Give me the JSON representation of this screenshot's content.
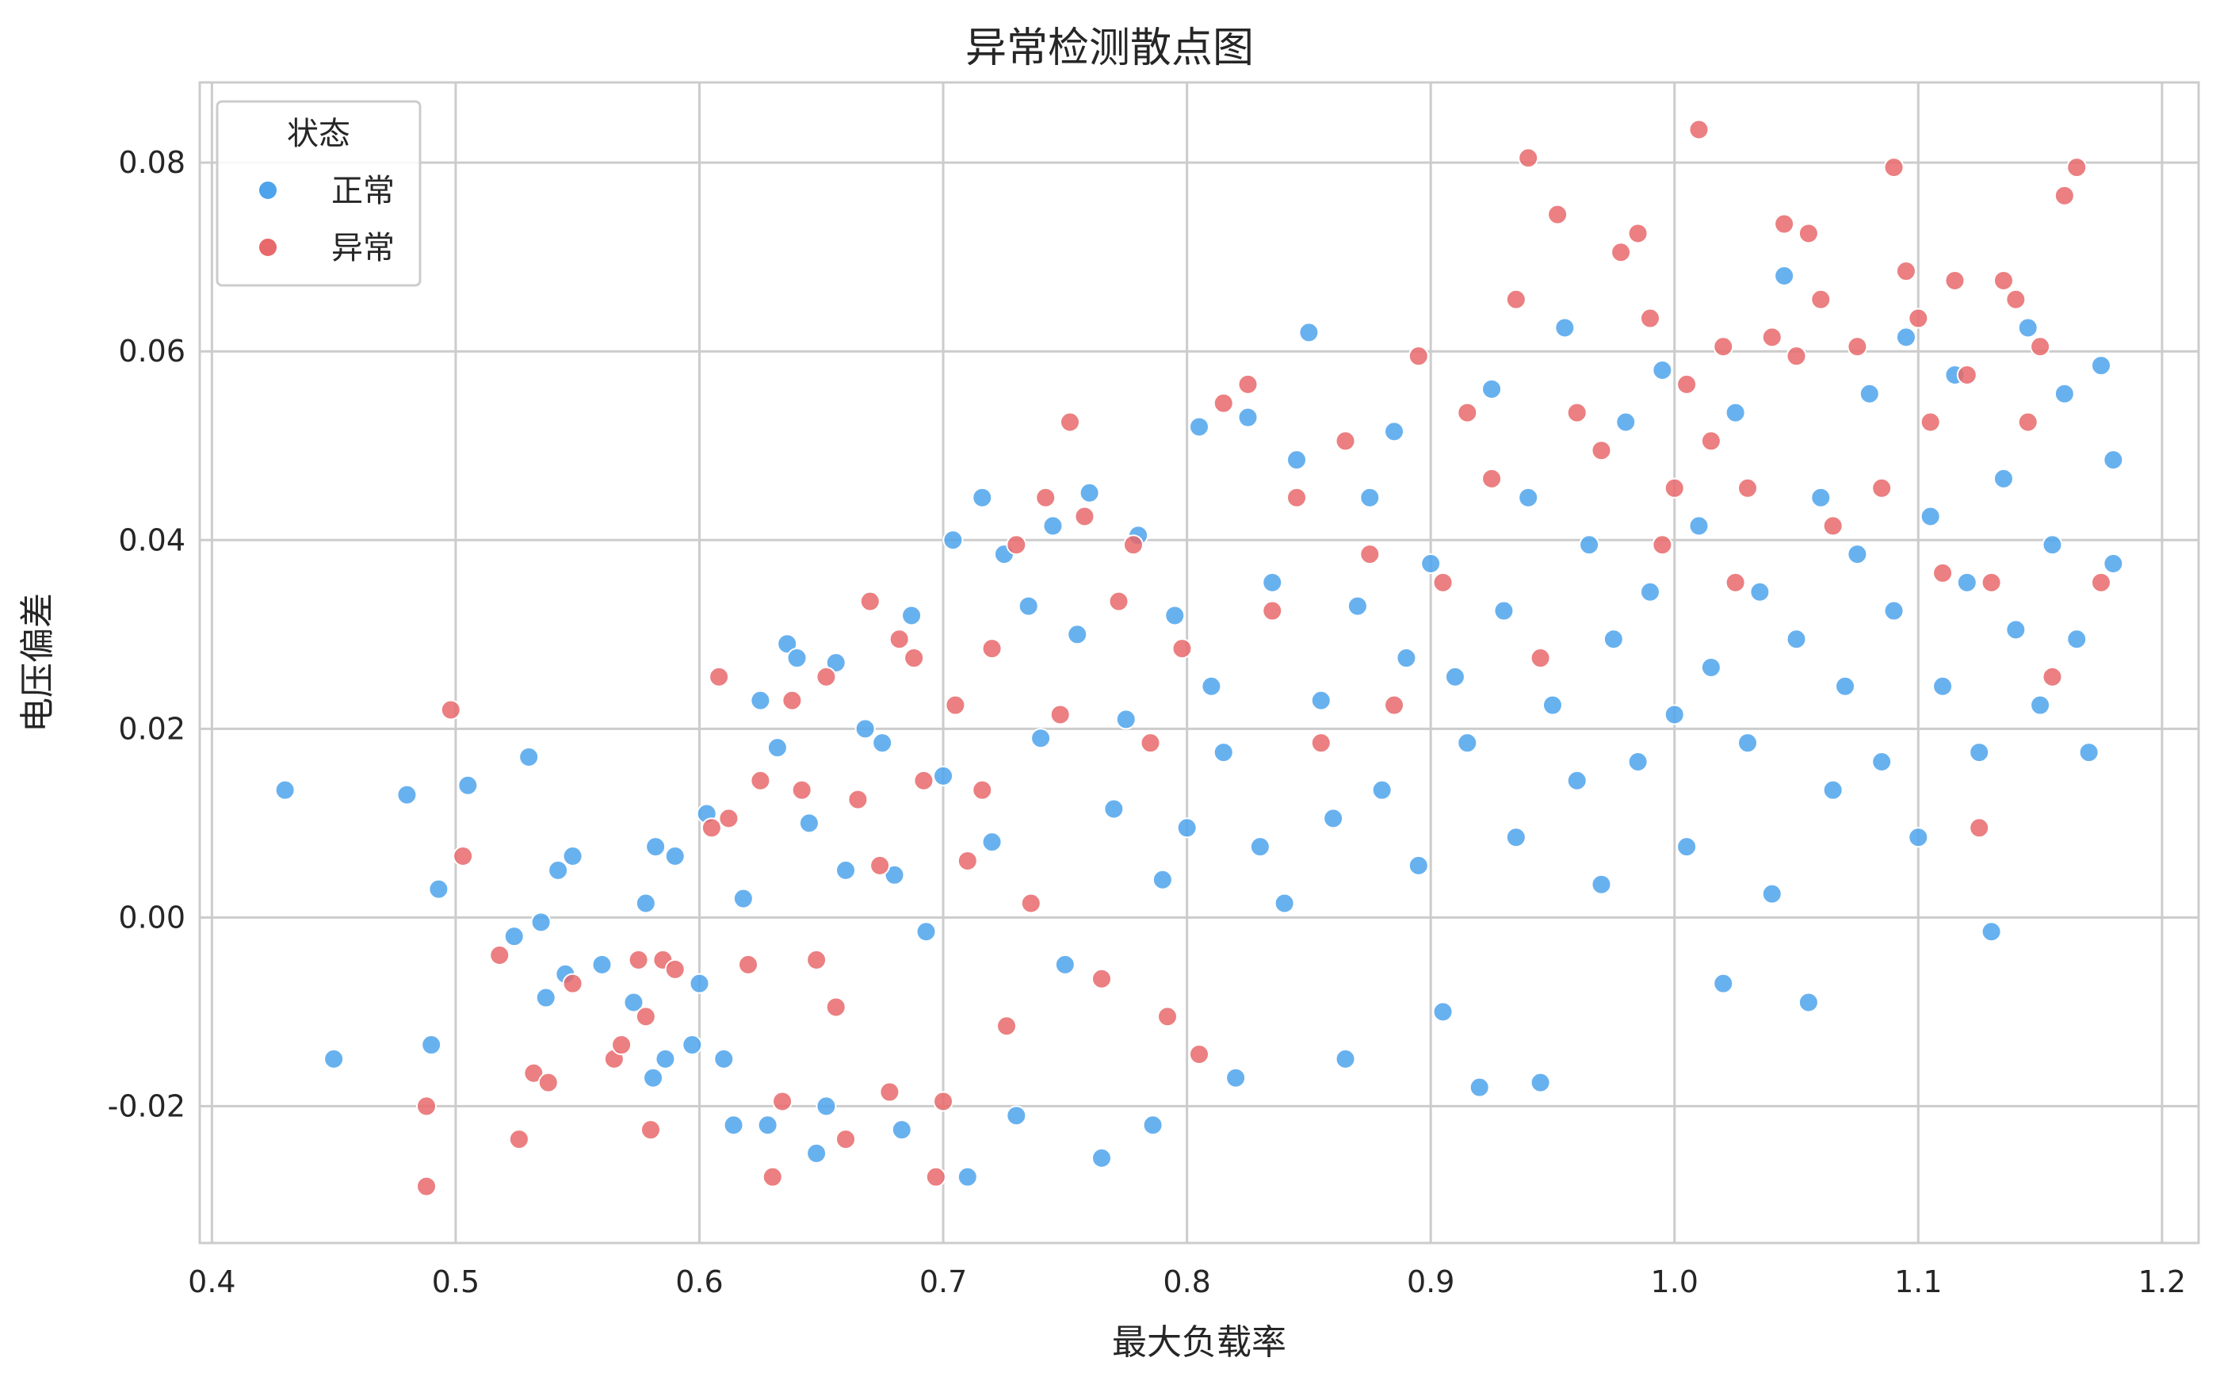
{
  "chart_data": {
    "type": "scatter",
    "title": "异常检测散点图",
    "xlabel": "最大负载率",
    "ylabel": "电压偏差",
    "xlim": [
      0.395,
      1.215
    ],
    "ylim": [
      -0.0345,
      0.0885
    ],
    "xticks": [
      0.4,
      0.5,
      0.6,
      0.7,
      0.8,
      0.9,
      1.0,
      1.1,
      1.2
    ],
    "xtick_labels": [
      "0.4",
      "0.5",
      "0.6",
      "0.7",
      "0.8",
      "0.9",
      "1.0",
      "1.1",
      "1.2"
    ],
    "yticks": [
      -0.02,
      0.0,
      0.02,
      0.04,
      0.06,
      0.08
    ],
    "ytick_labels": [
      "-0.02",
      "0.00",
      "0.02",
      "0.04",
      "0.06",
      "0.08"
    ],
    "grid": true,
    "legend": {
      "title": "状态",
      "placement": "top-left",
      "entries": [
        "正常",
        "异常"
      ]
    },
    "series": [
      {
        "name": "正常",
        "color": "#4da3ec",
        "points": [
          [
            0.43,
            0.0135
          ],
          [
            0.45,
            -0.015
          ],
          [
            0.48,
            0.013
          ],
          [
            0.49,
            -0.0135
          ],
          [
            0.493,
            0.003
          ],
          [
            0.505,
            0.014
          ],
          [
            0.524,
            -0.002
          ],
          [
            0.53,
            0.017
          ],
          [
            0.535,
            -0.0005
          ],
          [
            0.537,
            -0.0085
          ],
          [
            0.542,
            0.005
          ],
          [
            0.545,
            -0.006
          ],
          [
            0.548,
            0.0065
          ],
          [
            0.56,
            -0.005
          ],
          [
            0.573,
            -0.009
          ],
          [
            0.578,
            0.0015
          ],
          [
            0.581,
            -0.017
          ],
          [
            0.582,
            0.0075
          ],
          [
            0.586,
            -0.015
          ],
          [
            0.59,
            0.0065
          ],
          [
            0.597,
            -0.0135
          ],
          [
            0.6,
            -0.007
          ],
          [
            0.603,
            0.011
          ],
          [
            0.61,
            -0.015
          ],
          [
            0.614,
            -0.022
          ],
          [
            0.618,
            0.002
          ],
          [
            0.625,
            0.023
          ],
          [
            0.628,
            -0.022
          ],
          [
            0.632,
            0.018
          ],
          [
            0.636,
            0.029
          ],
          [
            0.64,
            0.0275
          ],
          [
            0.645,
            0.01
          ],
          [
            0.648,
            -0.025
          ],
          [
            0.652,
            -0.02
          ],
          [
            0.656,
            0.027
          ],
          [
            0.66,
            0.005
          ],
          [
            0.668,
            0.02
          ],
          [
            0.675,
            0.0185
          ],
          [
            0.68,
            0.0045
          ],
          [
            0.683,
            -0.0225
          ],
          [
            0.687,
            0.032
          ],
          [
            0.693,
            -0.0015
          ],
          [
            0.7,
            0.015
          ],
          [
            0.704,
            0.04
          ],
          [
            0.71,
            -0.0275
          ],
          [
            0.716,
            0.0445
          ],
          [
            0.72,
            0.008
          ],
          [
            0.725,
            0.0385
          ],
          [
            0.73,
            -0.021
          ],
          [
            0.735,
            0.033
          ],
          [
            0.74,
            0.019
          ],
          [
            0.745,
            0.0415
          ],
          [
            0.75,
            -0.005
          ],
          [
            0.755,
            0.03
          ],
          [
            0.76,
            0.045
          ],
          [
            0.765,
            -0.0255
          ],
          [
            0.77,
            0.0115
          ],
          [
            0.775,
            0.021
          ],
          [
            0.78,
            0.0405
          ],
          [
            0.786,
            -0.022
          ],
          [
            0.79,
            0.004
          ],
          [
            0.795,
            0.032
          ],
          [
            0.8,
            0.0095
          ],
          [
            0.805,
            0.052
          ],
          [
            0.81,
            0.0245
          ],
          [
            0.815,
            0.0175
          ],
          [
            0.82,
            -0.017
          ],
          [
            0.825,
            0.053
          ],
          [
            0.83,
            0.0075
          ],
          [
            0.835,
            0.0355
          ],
          [
            0.84,
            0.0015
          ],
          [
            0.845,
            0.0485
          ],
          [
            0.85,
            0.062
          ],
          [
            0.855,
            0.023
          ],
          [
            0.86,
            0.0105
          ],
          [
            0.865,
            -0.015
          ],
          [
            0.87,
            0.033
          ],
          [
            0.875,
            0.0445
          ],
          [
            0.88,
            0.0135
          ],
          [
            0.885,
            0.0515
          ],
          [
            0.89,
            0.0275
          ],
          [
            0.895,
            0.0055
          ],
          [
            0.9,
            0.0375
          ],
          [
            0.905,
            -0.01
          ],
          [
            0.91,
            0.0255
          ],
          [
            0.915,
            0.0185
          ],
          [
            0.92,
            -0.018
          ],
          [
            0.925,
            0.056
          ],
          [
            0.93,
            0.0325
          ],
          [
            0.935,
            0.0085
          ],
          [
            0.94,
            0.0445
          ],
          [
            0.945,
            -0.0175
          ],
          [
            0.95,
            0.0225
          ],
          [
            0.955,
            0.0625
          ],
          [
            0.96,
            0.0145
          ],
          [
            0.965,
            0.0395
          ],
          [
            0.97,
            0.0035
          ],
          [
            0.975,
            0.0295
          ],
          [
            0.98,
            0.0525
          ],
          [
            0.985,
            0.0165
          ],
          [
            0.99,
            0.0345
          ],
          [
            0.995,
            0.058
          ],
          [
            1.0,
            0.0215
          ],
          [
            1.005,
            0.0075
          ],
          [
            1.01,
            0.0415
          ],
          [
            1.015,
            0.0265
          ],
          [
            1.02,
            -0.007
          ],
          [
            1.025,
            0.0535
          ],
          [
            1.03,
            0.0185
          ],
          [
            1.035,
            0.0345
          ],
          [
            1.04,
            0.0025
          ],
          [
            1.045,
            0.068
          ],
          [
            1.05,
            0.0295
          ],
          [
            1.055,
            -0.009
          ],
          [
            1.06,
            0.0445
          ],
          [
            1.065,
            0.0135
          ],
          [
            1.07,
            0.0245
          ],
          [
            1.075,
            0.0385
          ],
          [
            1.08,
            0.0555
          ],
          [
            1.085,
            0.0165
          ],
          [
            1.09,
            0.0325
          ],
          [
            1.095,
            0.0615
          ],
          [
            1.1,
            0.0085
          ],
          [
            1.105,
            0.0425
          ],
          [
            1.11,
            0.0245
          ],
          [
            1.115,
            0.0575
          ],
          [
            1.12,
            0.0355
          ],
          [
            1.125,
            0.0175
          ],
          [
            1.13,
            -0.0015
          ],
          [
            1.135,
            0.0465
          ],
          [
            1.14,
            0.0305
          ],
          [
            1.145,
            0.0625
          ],
          [
            1.15,
            0.0225
          ],
          [
            1.155,
            0.0395
          ],
          [
            1.16,
            0.0555
          ],
          [
            1.165,
            0.0295
          ],
          [
            1.17,
            0.0175
          ],
          [
            1.175,
            0.0585
          ],
          [
            1.18,
            0.0485
          ],
          [
            1.18,
            0.0375
          ]
        ]
      },
      {
        "name": "异常",
        "color": "#e8696b",
        "points": [
          [
            0.488,
            -0.0285
          ],
          [
            0.488,
            -0.02
          ],
          [
            0.498,
            0.022
          ],
          [
            0.503,
            0.0065
          ],
          [
            0.518,
            -0.004
          ],
          [
            0.526,
            -0.0235
          ],
          [
            0.532,
            -0.0165
          ],
          [
            0.538,
            -0.0175
          ],
          [
            0.548,
            -0.007
          ],
          [
            0.565,
            -0.015
          ],
          [
            0.568,
            -0.0135
          ],
          [
            0.575,
            -0.0045
          ],
          [
            0.578,
            -0.0105
          ],
          [
            0.58,
            -0.0225
          ],
          [
            0.585,
            -0.0045
          ],
          [
            0.59,
            -0.0055
          ],
          [
            0.605,
            0.0095
          ],
          [
            0.608,
            0.0255
          ],
          [
            0.612,
            0.0105
          ],
          [
            0.62,
            -0.005
          ],
          [
            0.625,
            0.0145
          ],
          [
            0.63,
            -0.0275
          ],
          [
            0.634,
            -0.0195
          ],
          [
            0.638,
            0.023
          ],
          [
            0.642,
            0.0135
          ],
          [
            0.648,
            -0.0045
          ],
          [
            0.652,
            0.0255
          ],
          [
            0.656,
            -0.0095
          ],
          [
            0.66,
            -0.0235
          ],
          [
            0.665,
            0.0125
          ],
          [
            0.67,
            0.0335
          ],
          [
            0.674,
            0.0055
          ],
          [
            0.678,
            -0.0185
          ],
          [
            0.682,
            0.0295
          ],
          [
            0.688,
            0.0275
          ],
          [
            0.692,
            0.0145
          ],
          [
            0.697,
            -0.0275
          ],
          [
            0.7,
            -0.0195
          ],
          [
            0.705,
            0.0225
          ],
          [
            0.71,
            0.006
          ],
          [
            0.716,
            0.0135
          ],
          [
            0.72,
            0.0285
          ],
          [
            0.726,
            -0.0115
          ],
          [
            0.73,
            0.0395
          ],
          [
            0.736,
            0.0015
          ],
          [
            0.742,
            0.0445
          ],
          [
            0.748,
            0.0215
          ],
          [
            0.752,
            0.0525
          ],
          [
            0.758,
            0.0425
          ],
          [
            0.765,
            -0.0065
          ],
          [
            0.772,
            0.0335
          ],
          [
            0.778,
            0.0395
          ],
          [
            0.785,
            0.0185
          ],
          [
            0.792,
            -0.0105
          ],
          [
            0.798,
            0.0285
          ],
          [
            0.805,
            -0.0145
          ],
          [
            0.815,
            0.0545
          ],
          [
            0.825,
            0.0565
          ],
          [
            0.835,
            0.0325
          ],
          [
            0.845,
            0.0445
          ],
          [
            0.855,
            0.0185
          ],
          [
            0.865,
            0.0505
          ],
          [
            0.875,
            0.0385
          ],
          [
            0.885,
            0.0225
          ],
          [
            0.895,
            0.0595
          ],
          [
            0.905,
            0.0355
          ],
          [
            0.915,
            0.0535
          ],
          [
            0.925,
            0.0465
          ],
          [
            0.935,
            0.0655
          ],
          [
            0.94,
            0.0805
          ],
          [
            0.945,
            0.0275
          ],
          [
            0.952,
            0.0745
          ],
          [
            0.96,
            0.0535
          ],
          [
            0.97,
            0.0495
          ],
          [
            0.978,
            0.0705
          ],
          [
            0.985,
            0.0725
          ],
          [
            0.99,
            0.0635
          ],
          [
            0.995,
            0.0395
          ],
          [
            1.0,
            0.0455
          ],
          [
            1.005,
            0.0565
          ],
          [
            1.01,
            0.0835
          ],
          [
            1.015,
            0.0505
          ],
          [
            1.02,
            0.0605
          ],
          [
            1.025,
            0.0355
          ],
          [
            1.03,
            0.0455
          ],
          [
            1.04,
            0.0615
          ],
          [
            1.045,
            0.0735
          ],
          [
            1.05,
            0.0595
          ],
          [
            1.055,
            0.0725
          ],
          [
            1.06,
            0.0655
          ],
          [
            1.065,
            0.0415
          ],
          [
            1.075,
            0.0605
          ],
          [
            1.085,
            0.0455
          ],
          [
            1.09,
            0.0795
          ],
          [
            1.095,
            0.0685
          ],
          [
            1.1,
            0.0635
          ],
          [
            1.105,
            0.0525
          ],
          [
            1.11,
            0.0365
          ],
          [
            1.115,
            0.0675
          ],
          [
            1.12,
            0.0575
          ],
          [
            1.125,
            0.0095
          ],
          [
            1.13,
            0.0355
          ],
          [
            1.135,
            0.0675
          ],
          [
            1.14,
            0.0655
          ],
          [
            1.145,
            0.0525
          ],
          [
            1.15,
            0.0605
          ],
          [
            1.155,
            0.0255
          ],
          [
            1.16,
            0.0765
          ],
          [
            1.165,
            0.0795
          ],
          [
            1.175,
            0.0355
          ]
        ]
      }
    ]
  }
}
